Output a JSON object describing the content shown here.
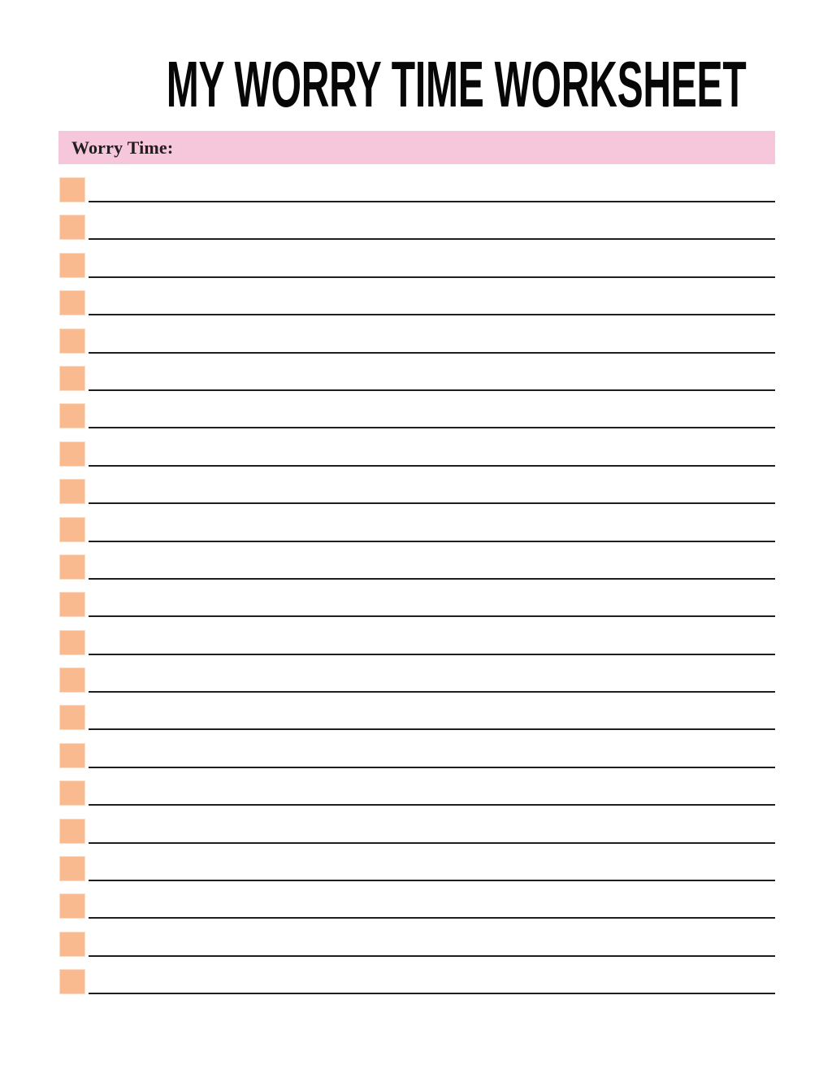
{
  "header": {
    "title": "MY WORRY TIME WORKSHEET"
  },
  "section": {
    "label": "Worry Time:"
  },
  "list": {
    "row_count": 22,
    "rows": [
      {
        "value": ""
      },
      {
        "value": ""
      },
      {
        "value": ""
      },
      {
        "value": ""
      },
      {
        "value": ""
      },
      {
        "value": ""
      },
      {
        "value": ""
      },
      {
        "value": ""
      },
      {
        "value": ""
      },
      {
        "value": ""
      },
      {
        "value": ""
      },
      {
        "value": ""
      },
      {
        "value": ""
      },
      {
        "value": ""
      },
      {
        "value": ""
      },
      {
        "value": ""
      },
      {
        "value": ""
      },
      {
        "value": ""
      },
      {
        "value": ""
      },
      {
        "value": ""
      },
      {
        "value": ""
      },
      {
        "value": ""
      }
    ]
  },
  "colors": {
    "background": "#FFFFFF",
    "banner_pink": "#F6C7DA",
    "checkbox_peach": "#F9BA90",
    "checkbox_edge": "#FCDCC2",
    "line": "#1F1F1F",
    "title_black": "#070707",
    "label_text": "#221D1E"
  }
}
